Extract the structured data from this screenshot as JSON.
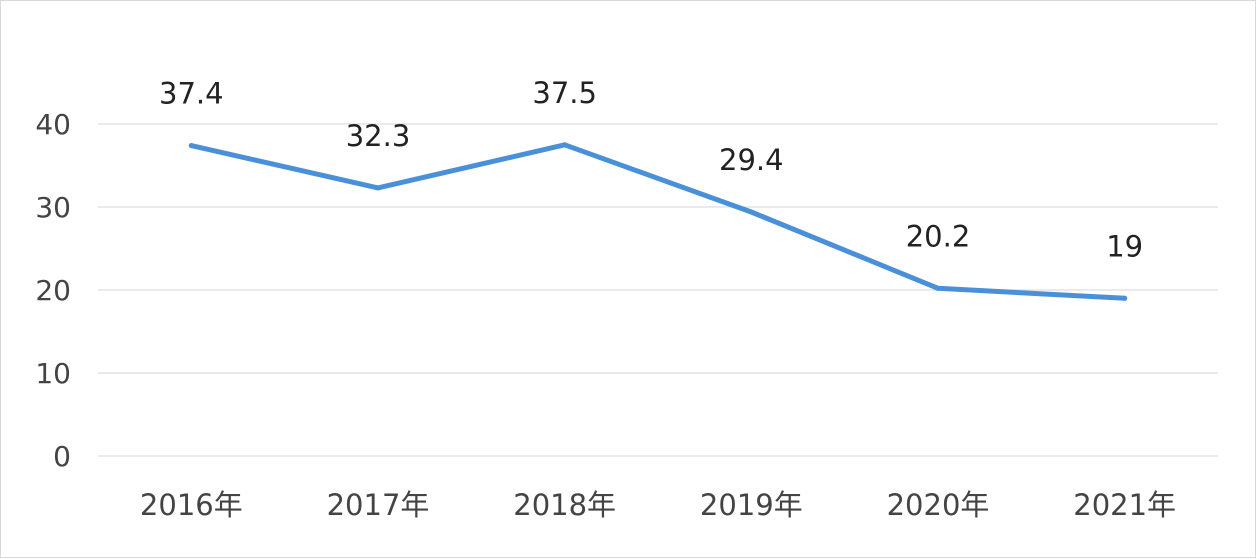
{
  "chart_data": {
    "type": "line",
    "categories": [
      "2016年",
      "2017年",
      "2018年",
      "2019年",
      "2020年",
      "2021年"
    ],
    "values": [
      37.4,
      32.3,
      37.5,
      29.4,
      20.2,
      19
    ],
    "data_labels": [
      "37.4",
      "32.3",
      "37.5",
      "29.4",
      "20.2",
      "19"
    ],
    "y_ticks": [
      "0",
      "10",
      "20",
      "30",
      "40"
    ],
    "ylim": [
      0,
      40
    ],
    "grid": true,
    "line_color": "#4a90d9",
    "grid_color": "#d9dde3",
    "legend": "none"
  }
}
